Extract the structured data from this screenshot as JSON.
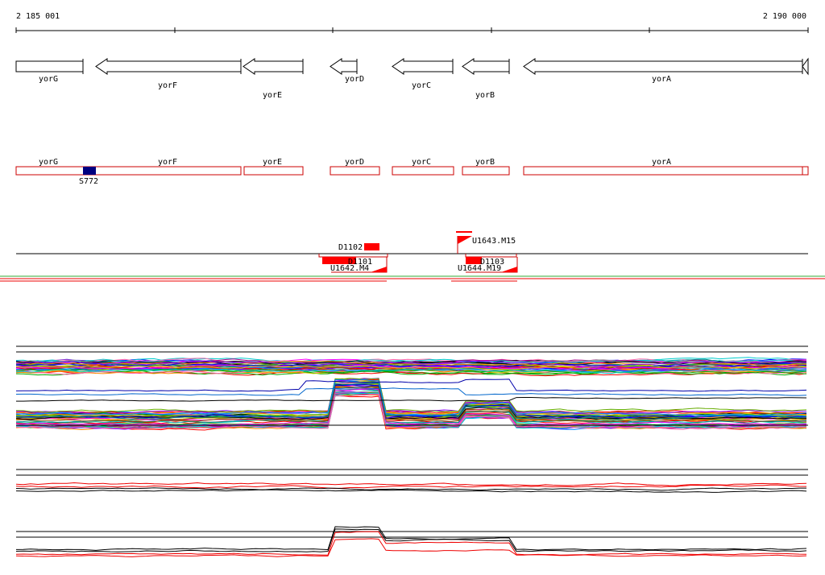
{
  "ruler": {
    "start_label": "2 185 001",
    "end_label": "2 190 000",
    "start": 2185001,
    "end": 2190000
  },
  "genes": [
    {
      "name": "yorG",
      "strand": "+"
    },
    {
      "name": "yorF",
      "strand": "-"
    },
    {
      "name": "yorE",
      "strand": "-"
    },
    {
      "name": "yorD",
      "strand": "-"
    },
    {
      "name": "yorC",
      "strand": "-"
    },
    {
      "name": "yorB",
      "strand": "-"
    },
    {
      "name": "yorA",
      "strand": "-"
    }
  ],
  "segments": {
    "labels": [
      "yorG",
      "yorF",
      "yorE",
      "yorD",
      "yorC",
      "yorB",
      "yorA"
    ],
    "feature_label": "S772"
  },
  "probes": {
    "labels": [
      "D1102",
      "D1101",
      "U1642.M4",
      "U1643.M15",
      "D1103",
      "U1644.M19"
    ]
  },
  "colors": {
    "gene_outline": "#000000",
    "segment_outline": "#cc0000",
    "feature_fill": "#000080",
    "probe_fill": "#ff0000",
    "track_line": "#000000",
    "green_line": "#33aa33",
    "red_line": "#ee0000"
  }
}
